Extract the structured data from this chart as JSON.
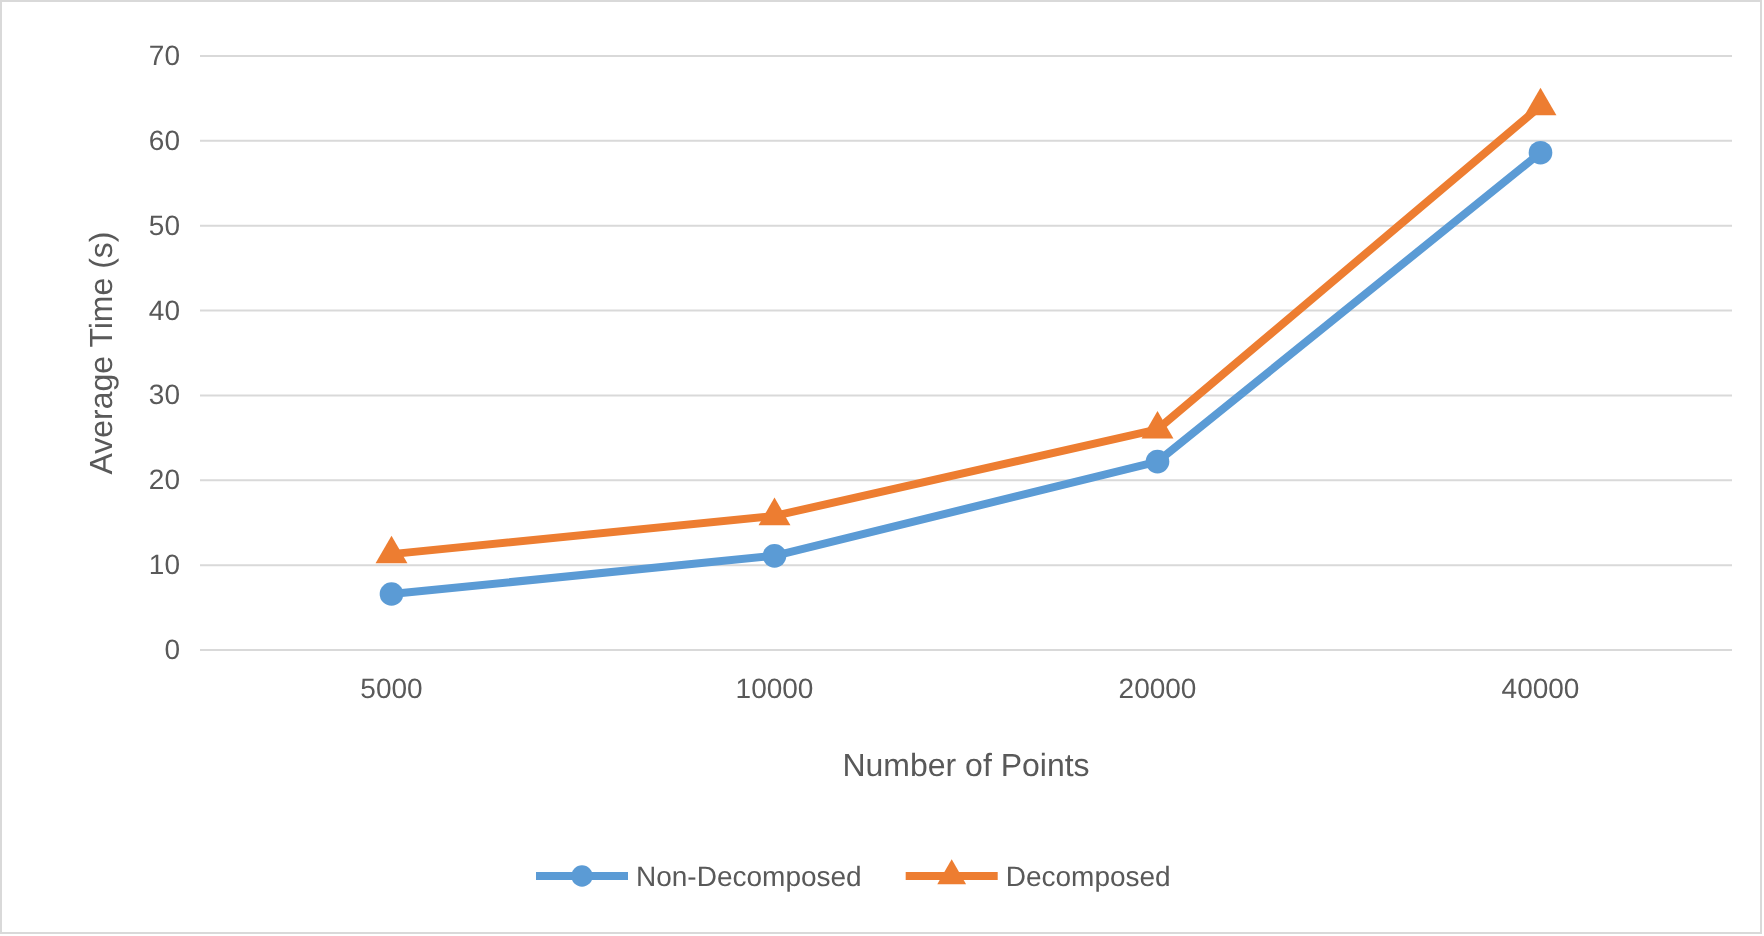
{
  "chart_data": {
    "type": "line",
    "xlabel": "Number of Points",
    "ylabel": "Average Time (s)",
    "categories": [
      "5000",
      "10000",
      "20000",
      "40000"
    ],
    "series": [
      {
        "name": "Non-Decomposed",
        "color": "#5b9bd5",
        "marker": "circle",
        "values": [
          6.6,
          11.1,
          22.2,
          58.6
        ]
      },
      {
        "name": "Decomposed",
        "color": "#ed7d31",
        "marker": "triangle",
        "values": [
          11.3,
          15.8,
          26.0,
          64.1
        ]
      }
    ],
    "ylim": [
      0,
      70
    ],
    "yticks": [
      0,
      10,
      20,
      30,
      40,
      50,
      60,
      70
    ],
    "grid": "y",
    "legend": "bottom",
    "line_style": "solid"
  }
}
